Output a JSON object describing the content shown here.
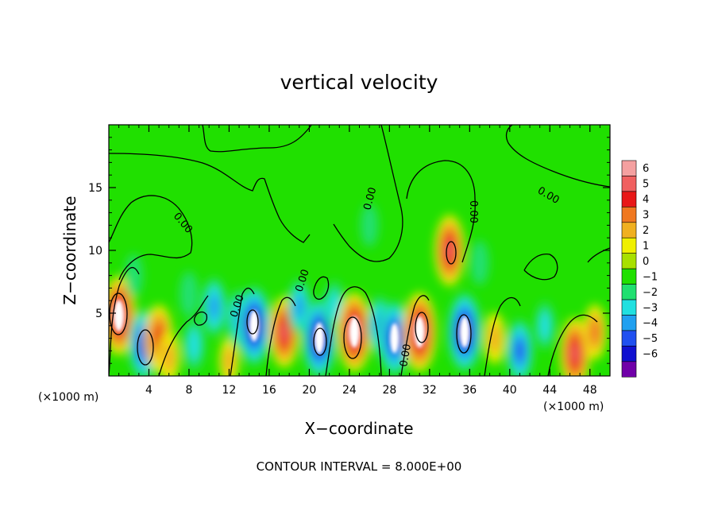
{
  "chart_data": {
    "type": "heatmap",
    "title": "vertical velocity",
    "xlabel": "X−coordinate",
    "ylabel": "Z−coordinate",
    "x_unit": "(×1000 m)",
    "y_unit": "(×1000 m)",
    "xlim": [
      0,
      50
    ],
    "ylim": [
      0,
      20
    ],
    "x_ticks": [
      "4",
      "8",
      "12",
      "16",
      "20",
      "24",
      "28",
      "32",
      "36",
      "40",
      "44",
      "48"
    ],
    "y_ticks": [
      "5",
      "10",
      "15"
    ],
    "footnote": "CONTOUR INTERVAL = 8.000E+00",
    "colorbar": {
      "labels": [
        "6",
        "5",
        "4",
        "3",
        "2",
        "1",
        "0",
        "−1",
        "−2",
        "−3",
        "−4",
        "−5",
        "−6"
      ],
      "colors": [
        "#f4a0a0",
        "#f06060",
        "#e81818",
        "#f07820",
        "#f0b020",
        "#f0f000",
        "#a8e000",
        "#20e000",
        "#20e070",
        "#20e0e0",
        "#20a0f0",
        "#2050f0",
        "#1010d0",
        "#7000a8"
      ]
    },
    "contour_labels": [
      "0.00",
      "0.00",
      "0.00",
      "0.00",
      "0.00",
      "0.00",
      "0.00"
    ],
    "cells": [
      {
        "x": 1.0,
        "z": 4.8,
        "w": 5.5
      },
      {
        "x": 3.5,
        "z": 2.5,
        "w": -4.5
      },
      {
        "x": 5.0,
        "z": 3.0,
        "w": 4.0
      },
      {
        "x": 6.0,
        "z": 1.5,
        "w": 2.0
      },
      {
        "x": 8.5,
        "z": 2.5,
        "w": -2.0
      },
      {
        "x": 10.5,
        "z": 5.5,
        "w": -3.0
      },
      {
        "x": 12.0,
        "z": 1.2,
        "w": 1.5
      },
      {
        "x": 13.0,
        "z": 4.5,
        "w": -3.0
      },
      {
        "x": 14.5,
        "z": 4.0,
        "w": -5.5
      },
      {
        "x": 17.5,
        "z": 3.5,
        "w": 4.5
      },
      {
        "x": 19.0,
        "z": 5.5,
        "w": -2.5
      },
      {
        "x": 21.0,
        "z": 3.0,
        "w": -5.5
      },
      {
        "x": 22.5,
        "z": 5.5,
        "w": -2.0
      },
      {
        "x": 24.5,
        "z": 3.5,
        "w": 5.5
      },
      {
        "x": 27.0,
        "z": 4.0,
        "w": -3.0
      },
      {
        "x": 28.5,
        "z": 3.0,
        "w": -5.0
      },
      {
        "x": 31.0,
        "z": 3.5,
        "w": 5.5
      },
      {
        "x": 34.0,
        "z": 10.0,
        "w": 4.5
      },
      {
        "x": 35.5,
        "z": 3.5,
        "w": -5.5
      },
      {
        "x": 37.0,
        "z": 9.0,
        "w": -1.2
      },
      {
        "x": 38.5,
        "z": 3.0,
        "w": 2.0
      },
      {
        "x": 41.0,
        "z": 2.0,
        "w": -3.5
      },
      {
        "x": 43.5,
        "z": 4.0,
        "w": -1.5
      },
      {
        "x": 46.5,
        "z": 1.8,
        "w": 4.5
      },
      {
        "x": 48.5,
        "z": 3.5,
        "w": 2.5
      },
      {
        "x": 26.0,
        "z": 12.0,
        "w": -1.0
      },
      {
        "x": 8.0,
        "z": 6.5,
        "w": -1.3
      },
      {
        "x": 2.5,
        "z": 8.0,
        "w": -1.0
      }
    ]
  }
}
